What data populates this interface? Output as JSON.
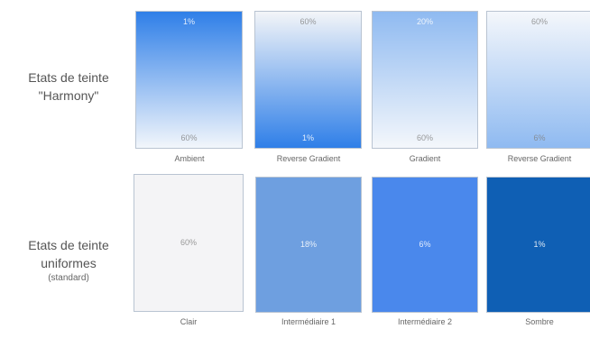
{
  "row_labels": {
    "harmony": {
      "line1": "Etats de teinte",
      "line2": "\"Harmony\""
    },
    "uniform": {
      "line1": "Etats de teinte",
      "line2": "uniformes",
      "line3": "(standard)"
    }
  },
  "harmony_swatches": [
    {
      "top_value": "1%",
      "bottom_value": "60%",
      "caption": "Ambient",
      "top_color": "#2f7fe8",
      "bottom_color": "#f2f6fb"
    },
    {
      "top_value": "60%",
      "bottom_value": "1%",
      "caption": "Reverse Gradient",
      "top_color": "#f3f5f8",
      "bottom_color": "#2f7fe8"
    },
    {
      "top_value": "20%",
      "bottom_value": "60%",
      "caption": "Gradient",
      "top_color": "#8fbaf1",
      "bottom_color": "#f4f7fb"
    },
    {
      "top_value": "60%",
      "bottom_value": "6%",
      "caption": "Reverse Gradient",
      "top_color": "#f4f7fb",
      "bottom_color": "#8fbaf1"
    }
  ],
  "uniform_swatches": [
    {
      "value": "60%",
      "caption": "Clair",
      "color": "#f4f4f6"
    },
    {
      "value": "18%",
      "caption": "Intermédiaire 1",
      "color": "#6e9fe0"
    },
    {
      "value": "6%",
      "caption": "Intermédiaire 2",
      "color": "#4a88ec"
    },
    {
      "value": "1%",
      "caption": "Sombre",
      "color": "#0f5fb4"
    }
  ]
}
